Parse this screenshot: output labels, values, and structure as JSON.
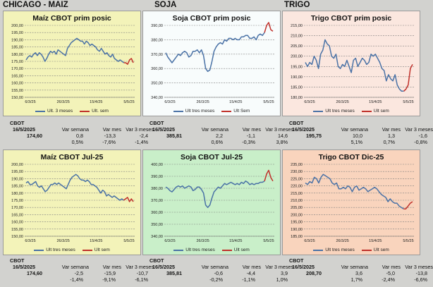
{
  "sections": [
    {
      "title": "CHICAGO - MAIZ"
    },
    {
      "title": "SOJA"
    },
    {
      "title": "TRIGO"
    }
  ],
  "colors": {
    "series_main": "#4a72a6",
    "series_week": "#c0302a",
    "grid": "#808080"
  },
  "chart_data": [
    {
      "type": "line",
      "title": "Maíz CBOT prim posic",
      "ylim": [
        150,
        200
      ],
      "yticks": [
        "150,00",
        "155,00",
        "160,00",
        "165,00",
        "170,00",
        "175,00",
        "180,00",
        "185,00",
        "190,00",
        "195,00",
        "200,00"
      ],
      "xticks": [
        "6/3/25",
        "26/3/25",
        "15/4/25",
        "5/5/25"
      ],
      "series": [
        {
          "name": "Ult. 3 meses",
          "values": [
            176,
            178,
            179,
            178,
            180,
            181,
            179,
            181,
            180,
            178,
            175,
            177,
            180,
            182,
            181,
            182,
            180,
            183,
            182,
            181,
            180,
            179,
            184,
            186,
            188,
            189,
            190,
            191,
            190,
            189,
            189,
            187,
            189,
            188,
            186,
            187,
            186,
            185,
            183,
            182,
            184,
            182,
            180,
            181,
            179,
            178,
            180,
            177,
            176,
            175,
            176,
            175,
            174
          ]
        },
        {
          "name": "Ult. sem",
          "values": [
            174,
            174,
            173,
            176,
            177,
            174
          ]
        }
      ]
    },
    {
      "type": "line",
      "title": "Soja CBOT prim posic",
      "ylim": [
        340,
        390
      ],
      "yticks": [
        "340,00",
        "350,00",
        "360,00",
        "370,00",
        "380,00",
        "390,00"
      ],
      "xticks": [
        "6/3/25",
        "26/3/25",
        "15/4/25",
        "5/5/25"
      ],
      "series": [
        {
          "name": "Ult tres meses",
          "values": [
            371,
            368,
            366,
            364,
            366,
            368,
            370,
            369,
            371,
            372,
            371,
            368,
            369,
            372,
            372,
            373,
            371,
            373,
            369,
            360,
            358,
            359,
            365,
            372,
            375,
            377,
            378,
            377,
            380,
            379,
            381,
            381,
            380,
            381,
            380,
            380,
            382,
            382,
            383,
            383,
            381,
            381,
            382,
            380,
            383,
            384,
            383,
            385
          ]
        },
        {
          "name": "Ult Sem",
          "values": [
            385,
            390,
            392,
            387,
            386
          ]
        }
      ]
    },
    {
      "type": "line",
      "title": "Trigo CBOT prim posic",
      "ylim": [
        180,
        215
      ],
      "yticks": [
        "180,00",
        "185,00",
        "190,00",
        "195,00",
        "200,00",
        "205,00",
        "210,00",
        "215,00"
      ],
      "xticks": [
        "6/3/25",
        "26/3/25",
        "15/4/25",
        "5/5/25"
      ],
      "series": [
        {
          "name": "Ult tres meses",
          "values": [
            197,
            195,
            197,
            196,
            200,
            198,
            194,
            201,
            203,
            208,
            206,
            205,
            200,
            199,
            201,
            195,
            194,
            196,
            195,
            198,
            195,
            192,
            198,
            199,
            195,
            197,
            199,
            198,
            196,
            197,
            201,
            200,
            201,
            199,
            197,
            194,
            193,
            188,
            191,
            189,
            188,
            191,
            186,
            184,
            183,
            183
          ]
        },
        {
          "name": "Ult sem",
          "values": [
            183,
            184,
            186,
            194,
            196
          ]
        }
      ]
    },
    {
      "type": "line",
      "title": "Maíz CBOT Jul-25",
      "ylim": [
        150,
        200
      ],
      "yticks": [
        "150,00",
        "155,00",
        "160,00",
        "165,00",
        "170,00",
        "175,00",
        "180,00",
        "185,00",
        "190,00",
        "195,00",
        "200,00"
      ],
      "xticks": [
        "6/3/25",
        "26/3/25",
        "15/4/25",
        "5/5/25"
      ],
      "series": [
        {
          "name": "Ult tres meses",
          "values": [
            187,
            188,
            186,
            186,
            187,
            188,
            185,
            184,
            185,
            183,
            181,
            182,
            184,
            186,
            186,
            187,
            186,
            187,
            186,
            185,
            184,
            183,
            186,
            189,
            191,
            192,
            193,
            192,
            190,
            189,
            189,
            188,
            189,
            188,
            186,
            186,
            185,
            184,
            182,
            180,
            182,
            181,
            178,
            179,
            178,
            177,
            178,
            177,
            176,
            175,
            176,
            175
          ]
        },
        {
          "name": "Ult sem",
          "values": [
            175,
            176,
            177,
            174,
            176,
            174
          ]
        }
      ]
    },
    {
      "type": "line",
      "title": "Soja CBOT Jul-25",
      "ylim": [
        340,
        400
      ],
      "yticks": [
        "340,00",
        "350,00",
        "360,00",
        "370,00",
        "380,00",
        "390,00",
        "400,00"
      ],
      "xticks": [
        "6/3/25",
        "26/3/25",
        "15/4/25",
        "5/5/25"
      ],
      "series": [
        {
          "name": "Ult tres meses",
          "values": [
            381,
            380,
            378,
            377,
            379,
            381,
            382,
            381,
            382,
            380,
            381,
            382,
            381,
            378,
            379,
            381,
            381,
            379,
            376,
            366,
            364,
            366,
            372,
            377,
            379,
            381,
            380,
            382,
            384,
            383,
            384,
            385,
            384,
            383,
            384,
            383,
            385,
            384,
            386,
            385,
            383,
            384,
            383,
            384,
            384,
            385,
            385,
            386
          ]
        },
        {
          "name": "Ult sem",
          "values": [
            386,
            392,
            395,
            389,
            386
          ]
        }
      ]
    },
    {
      "type": "line",
      "title": "Trigo CBOT Dic-25",
      "ylim": [
        185,
        235
      ],
      "yticks": [
        "185,00",
        "190,00",
        "195,00",
        "200,00",
        "205,00",
        "210,00",
        "215,00",
        "220,00",
        "225,00",
        "230,00",
        "235,00"
      ],
      "xticks": [
        "6/3/25",
        "26/3/25",
        "15/4/25",
        "5/5/25"
      ],
      "series": [
        {
          "name": "Ult tres meses",
          "values": [
            222,
            221,
            223,
            222,
            226,
            225,
            222,
            226,
            228,
            227,
            226,
            225,
            222,
            221,
            222,
            218,
            218,
            219,
            218,
            220,
            219,
            216,
            219,
            220,
            217,
            218,
            219,
            218,
            216,
            217,
            218,
            219,
            218,
            216,
            214,
            213,
            212,
            209,
            211,
            209,
            208,
            208,
            206,
            205,
            204
          ]
        },
        {
          "name": "Ult sem",
          "values": [
            204,
            204,
            206,
            208,
            209
          ]
        }
      ]
    }
  ],
  "stats": [
    {
      "label": "CBOT",
      "date": "16/5/2025",
      "price": "174,60",
      "headers": [
        "Var semana",
        "Var mes",
        "Var 3 meses"
      ],
      "abs": [
        "0,8",
        "-13,3",
        "-2,4"
      ],
      "pct": [
        "0,5%",
        "-7,6%",
        "-1,4%"
      ]
    },
    {
      "label": "CBOT",
      "date": "16/5/2025",
      "price": "385,81",
      "headers": [
        "Var semana",
        "Var mes",
        "Var 3 meses"
      ],
      "abs": [
        "2,2",
        "-1,1",
        "14,6"
      ],
      "pct": [
        "0,6%",
        "-0,3%",
        "3,8%"
      ]
    },
    {
      "label": "CBOT",
      "date": "16/5/2025",
      "price": "195,75",
      "headers": [
        "Var semana",
        "Var mes",
        "Var 3 meses"
      ],
      "abs": [
        "10,0",
        "1,3",
        "-1,6"
      ],
      "pct": [
        "5,1%",
        "0,7%",
        "-0,8%"
      ]
    },
    {
      "label": "CBOT",
      "date": "16/5/2025",
      "price": "174,60",
      "headers": [
        "Var semana",
        "Var mes",
        "Var 3 meses"
      ],
      "abs": [
        "-2,5",
        "-15,9",
        "-10,7"
      ],
      "pct": [
        "-1,4%",
        "-9,1%",
        "-6,1%"
      ]
    },
    {
      "label": "CBOT",
      "date": "16/5/2025",
      "price": "385,81",
      "headers": [
        "Var semana",
        "Var mes",
        "Var 3 meses"
      ],
      "abs": [
        "-0,6",
        "-4,4",
        "3,9"
      ],
      "pct": [
        "-0,2%",
        "-1,1%",
        "1,0%"
      ]
    },
    {
      "label": "CBOT",
      "date": "16/5/2025",
      "price": "208,70",
      "headers": [
        "Var semana",
        "Var mes",
        "Var 3 meses"
      ],
      "abs": [
        "3,6",
        "-5,0",
        "-13,8"
      ],
      "pct": [
        "1,7%",
        "-2,4%",
        "-6,6%"
      ]
    }
  ]
}
